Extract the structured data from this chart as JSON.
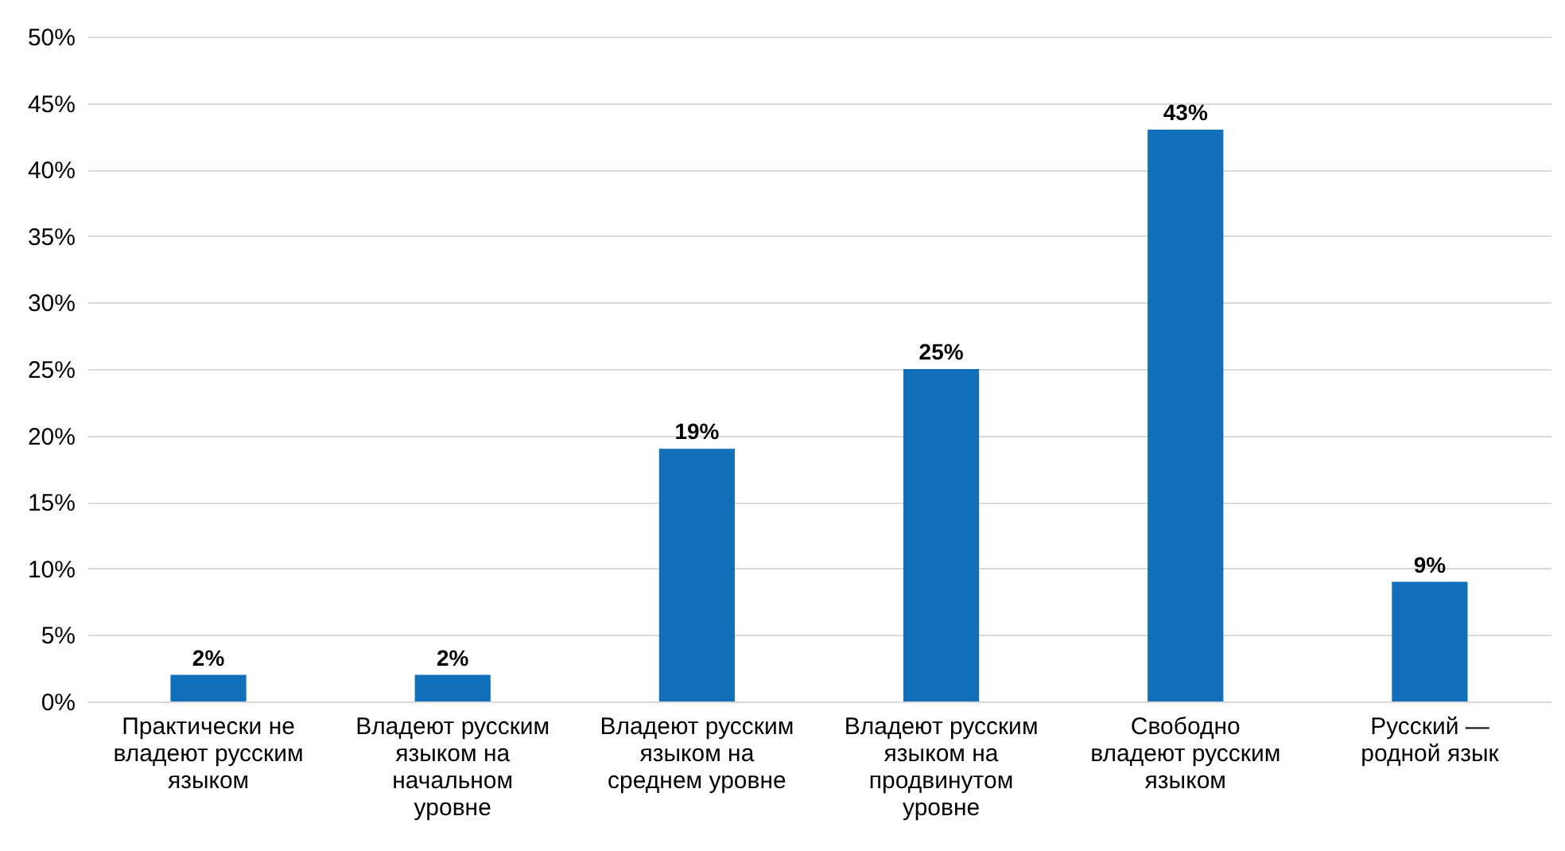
{
  "chart_data": {
    "type": "bar",
    "categories": [
      "Практически не владеют русским языком",
      "Владеют русским языком на начальном уровне",
      "Владеют русским языком на среднем уровне",
      "Владеют русским языком на продвинутом уровне",
      "Свободно владеют русским языком",
      "Русский — родной язык"
    ],
    "values": [
      2,
      2,
      19,
      25,
      43,
      9
    ],
    "value_labels": [
      "2%",
      "2%",
      "19%",
      "25%",
      "43%",
      "9%"
    ],
    "color": "#1170b9",
    "ylim": [
      0,
      50
    ],
    "yticks": [
      {
        "value": 0,
        "label": "0%"
      },
      {
        "value": 5,
        "label": "5%"
      },
      {
        "value": 10,
        "label": "10%"
      },
      {
        "value": 15,
        "label": "15%"
      },
      {
        "value": 20,
        "label": "20%"
      },
      {
        "value": 25,
        "label": "25%"
      },
      {
        "value": 30,
        "label": "30%"
      },
      {
        "value": 35,
        "label": "35%"
      },
      {
        "value": 40,
        "label": "40%"
      },
      {
        "value": 45,
        "label": "45%"
      },
      {
        "value": 50,
        "label": "50%"
      }
    ],
    "grid": "y"
  }
}
